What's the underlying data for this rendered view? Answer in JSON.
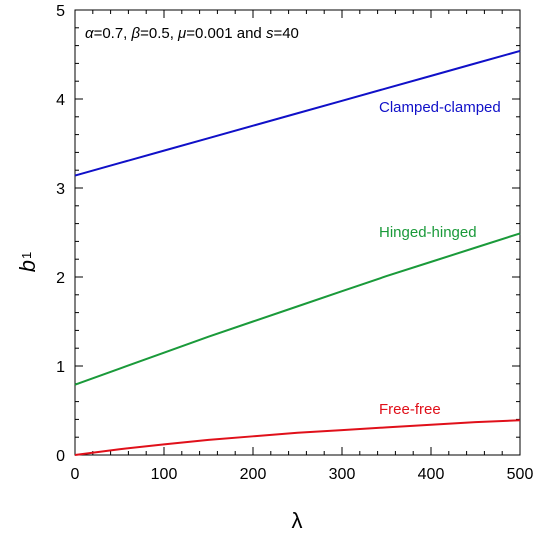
{
  "chart_data": {
    "type": "line",
    "annotation_params": {
      "alpha_sym": "α",
      "alpha_val": "=0.7, ",
      "beta_sym": "β",
      "beta_val": "=0.5, ",
      "mu_sym": "μ",
      "mu_val": "=0.001 and ",
      "s_sym": "s",
      "s_val": "=40"
    },
    "xlabel": "λ",
    "ylabel_main": "b",
    "ylabel_sub": "1",
    "xlim": [
      0,
      500
    ],
    "ylim": [
      0,
      5
    ],
    "xticks": [
      "0",
      "100",
      "200",
      "300",
      "400",
      "500"
    ],
    "yticks": [
      "0",
      "1",
      "2",
      "3",
      "4",
      "5"
    ],
    "grid": false,
    "series": [
      {
        "name": "Clamped-clamped",
        "color": "#1010c8",
        "x": [
          0,
          50,
          100,
          150,
          200,
          250,
          300,
          350,
          400,
          450,
          500
        ],
        "y": [
          3.14,
          3.28,
          3.42,
          3.56,
          3.7,
          3.84,
          3.98,
          4.12,
          4.26,
          4.4,
          4.54
        ]
      },
      {
        "name": "Hinged-hinged",
        "color": "#1a9a3a",
        "x": [
          0,
          50,
          100,
          150,
          200,
          250,
          300,
          350,
          400,
          450,
          500
        ],
        "y": [
          0.79,
          0.97,
          1.15,
          1.33,
          1.5,
          1.67,
          1.84,
          2.01,
          2.17,
          2.33,
          2.49
        ]
      },
      {
        "name": "Free-free",
        "color": "#e0101a",
        "x": [
          0,
          50,
          100,
          150,
          200,
          250,
          300,
          350,
          400,
          450,
          500
        ],
        "y": [
          0.0,
          0.065,
          0.12,
          0.17,
          0.21,
          0.25,
          0.28,
          0.31,
          0.34,
          0.37,
          0.39
        ]
      }
    ]
  }
}
